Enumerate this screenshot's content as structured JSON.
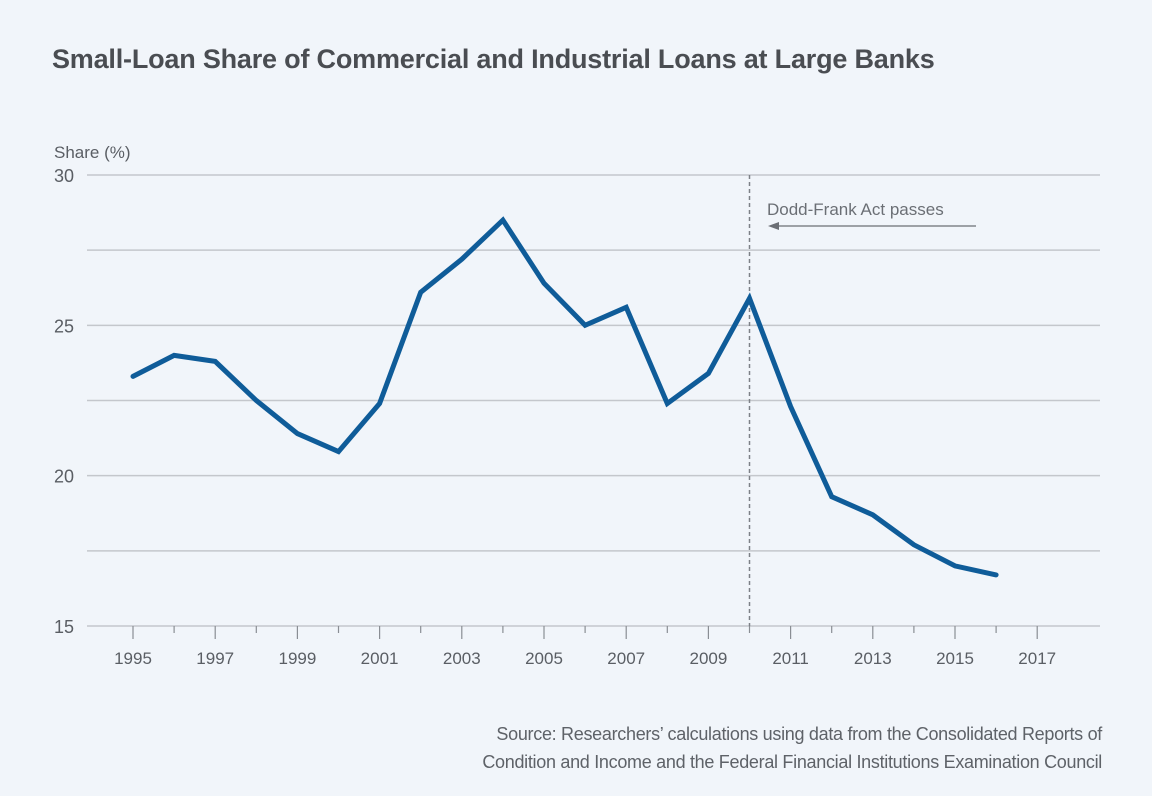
{
  "chart_data": {
    "type": "line",
    "title": "Small-Loan Share of Commercial and Industrial Loans at Large Banks",
    "xlabel": "",
    "ylabel": "Share (%)",
    "xlim": [
      1994.5,
      2018.3
    ],
    "ylim": [
      15,
      30
    ],
    "y_ticks": [
      15,
      20,
      25,
      30
    ],
    "y_tick_labels": [
      "15",
      "20",
      "25",
      "30"
    ],
    "y_minor_gridlines": [
      17.5,
      22.5,
      27.5
    ],
    "x_major_ticks": [
      1995,
      1997,
      1999,
      2001,
      2003,
      2005,
      2007,
      2009,
      2011,
      2013,
      2015,
      2017
    ],
    "x_tick_labels": [
      "1995",
      "1997",
      "1999",
      "2001",
      "2003",
      "2005",
      "2007",
      "2009",
      "2011",
      "2013",
      "2015",
      "2017"
    ],
    "x_minor_ticks": [
      1996,
      1998,
      2000,
      2002,
      2004,
      2006,
      2008,
      2010,
      2012,
      2014,
      2016
    ],
    "grid": true,
    "legend": "none",
    "x": [
      1995,
      1996,
      1997,
      1998,
      1999,
      2000,
      2001,
      2002,
      2003,
      2004,
      2005,
      2006,
      2007,
      2008,
      2009,
      2010,
      2011,
      2012,
      2013,
      2014,
      2015,
      2016
    ],
    "series": [
      {
        "name": "Small-loan share",
        "color": "#0f5c99",
        "values": [
          23.3,
          24.0,
          23.8,
          22.5,
          21.4,
          20.8,
          22.4,
          26.1,
          27.2,
          28.5,
          26.4,
          25.0,
          25.6,
          22.4,
          23.4,
          25.9,
          22.3,
          19.3,
          18.7,
          17.7,
          17.0,
          16.7
        ]
      }
    ],
    "annotations": [
      {
        "type": "vertical-line",
        "x": 2010,
        "style": "dashed",
        "label": "Dodd-Frank Act passes",
        "arrow": "left"
      }
    ],
    "source": "Source: Researchers’ calculations using data from the Consolidated Reports of Condition and Income and the Federal Financial Institutions Examination Council"
  },
  "header": {
    "title": "Small-Loan Share of Commercial and Industrial Loans at Large Banks"
  },
  "axis": {
    "y_label": "Share (%)"
  },
  "annotation": {
    "label": "Dodd-Frank Act passes"
  },
  "footer": {
    "source_line1": "Source: Researchers’ calculations using data from the Consolidated Reports of",
    "source_line2": "Condition and Income and the Federal Financial Institutions Examination Council"
  },
  "colors": {
    "background": "#f1f5fa",
    "line": "#0f5c99",
    "grid": "#c4c7cc",
    "text": "#4a4d52",
    "annotation": "#6b6f75"
  }
}
